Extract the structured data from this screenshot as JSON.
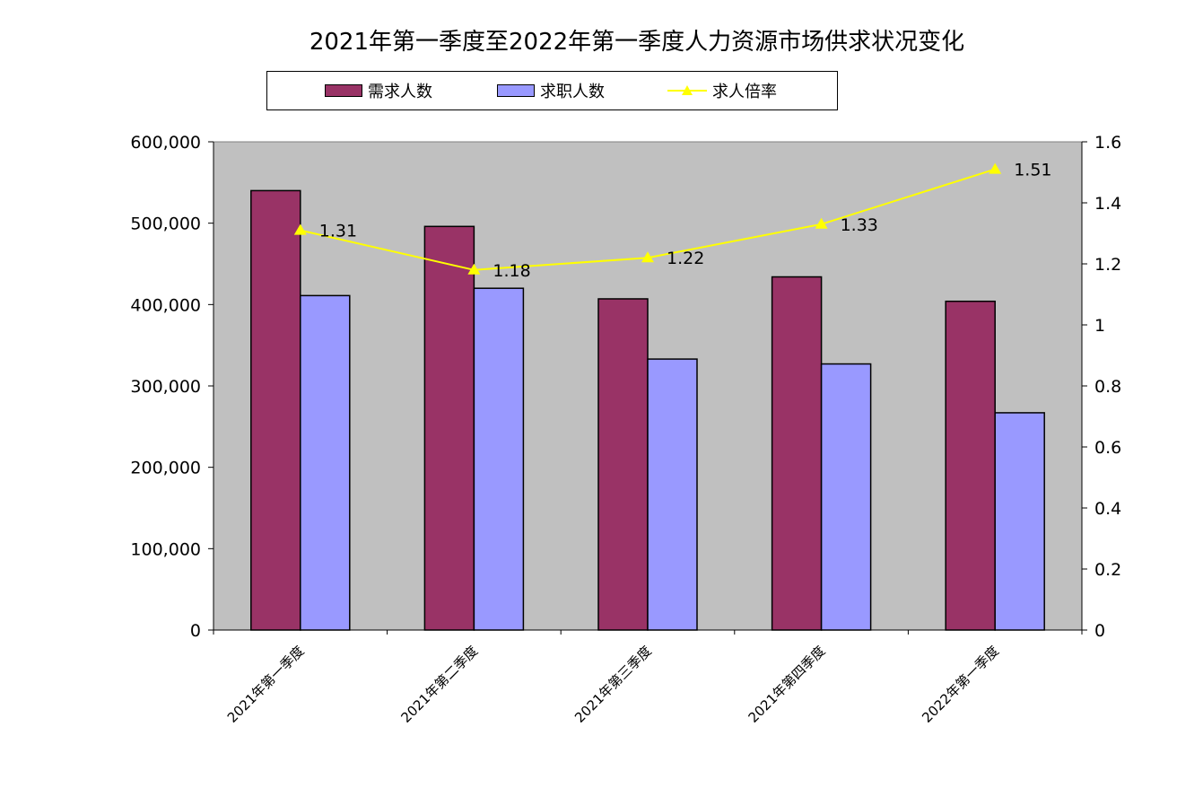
{
  "chart_data": {
    "type": "bar",
    "title": "2021年第一季度至2022年第一季度人力资源市场供求状况变化",
    "categories": [
      "2021年第一季度",
      "2021年第二季度",
      "2021年第三季度",
      "2021年第四季度",
      "2022年第一季度"
    ],
    "series": [
      {
        "name": "需求人数",
        "type": "bar",
        "axis": "left",
        "color": "#993366",
        "values": [
          540000,
          496000,
          407000,
          434000,
          404000
        ]
      },
      {
        "name": "求职人数",
        "type": "bar",
        "axis": "left",
        "color": "#9999ff",
        "values": [
          411000,
          420000,
          333000,
          327000,
          267000
        ]
      },
      {
        "name": "求人倍率",
        "type": "line",
        "axis": "right",
        "color": "#ffff00",
        "marker": "triangle",
        "values": [
          1.31,
          1.18,
          1.22,
          1.33,
          1.51
        ]
      }
    ],
    "y_left": {
      "ylim": [
        0,
        600000
      ],
      "ticks": [
        0,
        100000,
        200000,
        300000,
        400000,
        500000,
        600000
      ],
      "tick_labels": [
        "0",
        "100,000",
        "200,000",
        "300,000",
        "400,000",
        "500,000",
        "600,000"
      ]
    },
    "y_right": {
      "ylim": [
        0,
        1.6
      ],
      "ticks": [
        0,
        0.2,
        0.4,
        0.6,
        0.8,
        1.0,
        1.2,
        1.4,
        1.6
      ],
      "tick_labels": [
        "0",
        "0.2",
        "0.4",
        "0.6",
        "0.8",
        "1",
        "1.2",
        "1.4",
        "1.6"
      ]
    },
    "data_labels": [
      "1.31",
      "1.18",
      "1.22",
      "1.33",
      "1.51"
    ],
    "plot_background": "#c0c0c0",
    "grid": false,
    "legend_position": "top"
  }
}
